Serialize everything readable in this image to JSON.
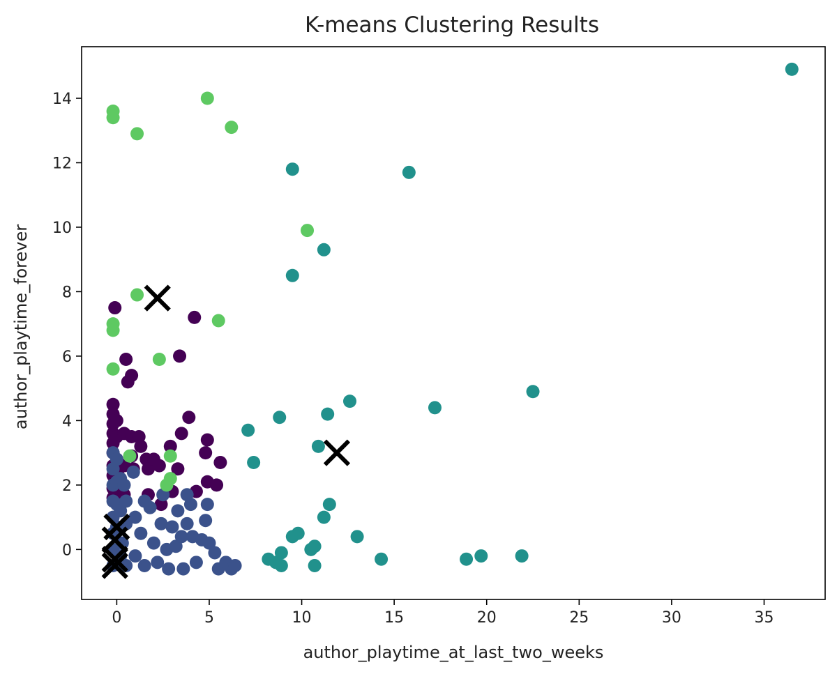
{
  "chart_data": {
    "type": "scatter",
    "title": "K-means Clustering Results",
    "xlabel": "author_playtime_at_last_two_weeks",
    "ylabel": "author_playtime_forever",
    "xlim": [
      -1.9,
      38.3
    ],
    "ylim": [
      -1.55,
      15.6
    ],
    "xticks": [
      0,
      5,
      10,
      15,
      20,
      25,
      30,
      35
    ],
    "yticks": [
      0,
      2,
      4,
      6,
      8,
      10,
      12,
      14
    ],
    "grid": false,
    "legend": "none",
    "colors": {
      "cluster_0": "#440154",
      "cluster_1": "#3b528b",
      "cluster_2": "#21918c",
      "cluster_3": "#5ec962",
      "centroid": "#000000"
    },
    "series": [
      {
        "color_key": "cluster_0",
        "points": [
          [
            -0.1,
            7.5
          ],
          [
            -0.2,
            4.5
          ],
          [
            -0.2,
            4.2
          ],
          [
            -0.2,
            3.9
          ],
          [
            -0.2,
            3.6
          ],
          [
            -0.2,
            3.3
          ],
          [
            -0.2,
            3.0
          ],
          [
            -0.2,
            2.6
          ],
          [
            -0.2,
            2.3
          ],
          [
            -0.2,
            1.9
          ],
          [
            -0.2,
            1.6
          ],
          [
            0.0,
            4.0
          ],
          [
            0.0,
            3.5
          ],
          [
            0.0,
            2.8
          ],
          [
            0.1,
            2.5
          ],
          [
            0.1,
            1.9
          ],
          [
            0.4,
            3.6
          ],
          [
            0.4,
            2.6
          ],
          [
            0.4,
            1.7
          ],
          [
            0.5,
            5.9
          ],
          [
            0.6,
            5.2
          ],
          [
            0.8,
            5.4
          ],
          [
            0.8,
            3.5
          ],
          [
            0.8,
            2.9
          ],
          [
            0.9,
            2.5
          ],
          [
            1.2,
            3.5
          ],
          [
            1.3,
            3.2
          ],
          [
            1.6,
            2.8
          ],
          [
            1.7,
            2.5
          ],
          [
            1.7,
            1.7
          ],
          [
            2.0,
            2.8
          ],
          [
            2.3,
            2.6
          ],
          [
            2.4,
            1.4
          ],
          [
            2.9,
            3.2
          ],
          [
            3.0,
            1.8
          ],
          [
            3.3,
            2.5
          ],
          [
            3.4,
            6.0
          ],
          [
            3.5,
            3.6
          ],
          [
            3.9,
            4.1
          ],
          [
            4.2,
            7.2
          ],
          [
            4.3,
            1.8
          ],
          [
            4.8,
            3.0
          ],
          [
            4.9,
            3.4
          ],
          [
            4.9,
            2.1
          ],
          [
            5.4,
            2.0
          ],
          [
            5.6,
            2.7
          ]
        ]
      },
      {
        "color_key": "cluster_1",
        "points": [
          [
            -0.2,
            3.0
          ],
          [
            -0.2,
            2.5
          ],
          [
            -0.2,
            2.0
          ],
          [
            -0.2,
            1.5
          ],
          [
            -0.2,
            1.0
          ],
          [
            -0.2,
            0.5
          ],
          [
            -0.2,
            0.0
          ],
          [
            -0.2,
            -0.5
          ],
          [
            0.0,
            2.8
          ],
          [
            0.0,
            2.1
          ],
          [
            0.0,
            1.4
          ],
          [
            0.0,
            0.7
          ],
          [
            0.2,
            2.2
          ],
          [
            0.2,
            1.2
          ],
          [
            0.2,
            -0.2
          ],
          [
            0.3,
            0.2
          ],
          [
            0.4,
            2.0
          ],
          [
            0.5,
            1.5
          ],
          [
            0.5,
            0.8
          ],
          [
            0.5,
            -0.5
          ],
          [
            0.9,
            2.4
          ],
          [
            1.0,
            1.0
          ],
          [
            1.0,
            -0.2
          ],
          [
            1.3,
            0.5
          ],
          [
            1.5,
            1.5
          ],
          [
            1.5,
            -0.5
          ],
          [
            1.8,
            1.3
          ],
          [
            2.0,
            0.2
          ],
          [
            2.2,
            -0.4
          ],
          [
            2.4,
            0.8
          ],
          [
            2.5,
            1.7
          ],
          [
            2.7,
            0.0
          ],
          [
            2.8,
            -0.6
          ],
          [
            3.0,
            0.7
          ],
          [
            3.2,
            0.1
          ],
          [
            3.3,
            1.2
          ],
          [
            3.5,
            0.4
          ],
          [
            3.6,
            -0.6
          ],
          [
            3.8,
            1.7
          ],
          [
            3.8,
            0.8
          ],
          [
            4.0,
            1.4
          ],
          [
            4.1,
            0.4
          ],
          [
            4.3,
            -0.4
          ],
          [
            4.6,
            0.3
          ],
          [
            4.8,
            0.9
          ],
          [
            4.9,
            1.4
          ],
          [
            5.0,
            0.2
          ],
          [
            5.3,
            -0.1
          ],
          [
            5.5,
            -0.6
          ],
          [
            5.9,
            -0.4
          ],
          [
            6.2,
            -0.6
          ],
          [
            6.4,
            -0.5
          ]
        ]
      },
      {
        "color_key": "cluster_2",
        "points": [
          [
            36.5,
            14.9
          ],
          [
            9.5,
            11.8
          ],
          [
            15.8,
            11.7
          ],
          [
            11.2,
            9.3
          ],
          [
            9.5,
            8.5
          ],
          [
            22.5,
            4.9
          ],
          [
            12.6,
            4.6
          ],
          [
            17.2,
            4.4
          ],
          [
            11.4,
            4.2
          ],
          [
            8.8,
            4.1
          ],
          [
            7.1,
            3.7
          ],
          [
            10.9,
            3.2
          ],
          [
            7.4,
            2.7
          ],
          [
            11.5,
            1.4
          ],
          [
            11.2,
            1.0
          ],
          [
            9.8,
            0.5
          ],
          [
            9.5,
            0.4
          ],
          [
            13.0,
            0.4
          ],
          [
            10.7,
            0.1
          ],
          [
            10.5,
            0.0
          ],
          [
            8.9,
            -0.1
          ],
          [
            8.2,
            -0.3
          ],
          [
            8.6,
            -0.4
          ],
          [
            8.9,
            -0.5
          ],
          [
            10.7,
            -0.5
          ],
          [
            14.3,
            -0.3
          ],
          [
            18.9,
            -0.3
          ],
          [
            19.7,
            -0.2
          ],
          [
            21.9,
            -0.2
          ]
        ]
      },
      {
        "color_key": "cluster_3",
        "points": [
          [
            4.9,
            14.0
          ],
          [
            -0.2,
            13.6
          ],
          [
            -0.2,
            13.4
          ],
          [
            6.2,
            13.1
          ],
          [
            1.1,
            12.9
          ],
          [
            10.3,
            9.9
          ],
          [
            1.1,
            7.9
          ],
          [
            5.5,
            7.1
          ],
          [
            -0.2,
            7.0
          ],
          [
            -0.2,
            6.8
          ],
          [
            2.3,
            5.9
          ],
          [
            -0.2,
            5.6
          ],
          [
            0.7,
            2.9
          ],
          [
            2.9,
            2.9
          ],
          [
            2.9,
            2.2
          ],
          [
            2.7,
            2.0
          ]
        ]
      },
      {
        "color_key": "centroid",
        "marker": "x",
        "points": [
          [
            2.2,
            7.8
          ],
          [
            11.9,
            3.0
          ],
          [
            0.0,
            0.7
          ],
          [
            -0.1,
            0.3
          ],
          [
            -0.1,
            -0.3
          ],
          [
            -0.1,
            -0.5
          ]
        ]
      }
    ]
  }
}
